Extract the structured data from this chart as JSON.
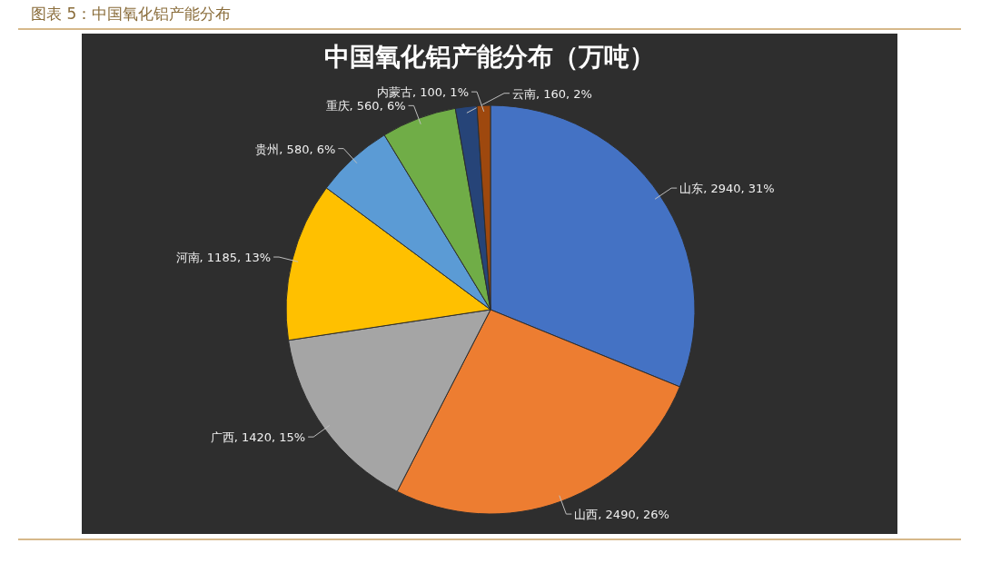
{
  "chart_data": {
    "type": "pie",
    "title": "中国氧化铝产能分布（万吨）",
    "annotations": [
      "图表 5：中国氧化铝产能分布"
    ],
    "categories": [
      "山东",
      "山西",
      "广西",
      "河南",
      "贵州",
      "重庆",
      "云南",
      "内蒙古"
    ],
    "values": [
      2940,
      2490,
      1420,
      1185,
      580,
      560,
      160,
      100
    ],
    "colors": [
      "#4472c4",
      "#ed7d31",
      "#a5a5a5",
      "#ffc000",
      "#5b9bd5",
      "#70ad47",
      "#264478",
      "#9e480e"
    ],
    "value_labels": [
      "2940, 31%",
      "2490, 26%",
      "1420, 15%",
      "1185, 13%",
      "580, 6%",
      "560, 6%",
      "160, 2%",
      "100, 1%"
    ],
    "legend": false
  }
}
